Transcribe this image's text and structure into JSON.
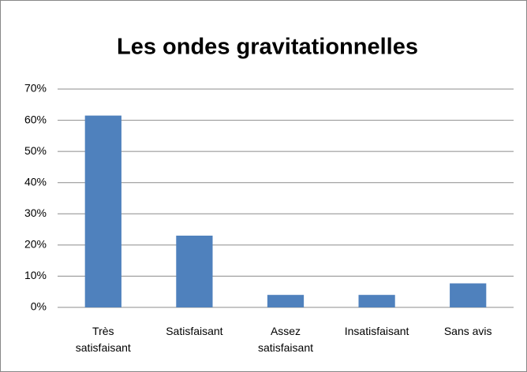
{
  "chart_data": {
    "type": "bar",
    "title": "Les ondes gravitationnelles",
    "categories": [
      "Très satisfaisant",
      "Satisfaisant",
      "Assez satisfaisant",
      "Insatisfaisant",
      "Sans avis"
    ],
    "values": [
      61.5,
      23,
      4,
      4,
      7.7
    ],
    "color": "#4f81bd",
    "ylim": [
      0,
      70
    ],
    "yticks": [
      {
        "value": 0,
        "label": "0%"
      },
      {
        "value": 10,
        "label": "10%"
      },
      {
        "value": 20,
        "label": "20%"
      },
      {
        "value": 30,
        "label": "30%"
      },
      {
        "value": 40,
        "label": "40%"
      },
      {
        "value": 50,
        "label": "50%"
      },
      {
        "value": 60,
        "label": "60%"
      },
      {
        "value": 70,
        "label": "70%"
      }
    ],
    "grid": true
  }
}
